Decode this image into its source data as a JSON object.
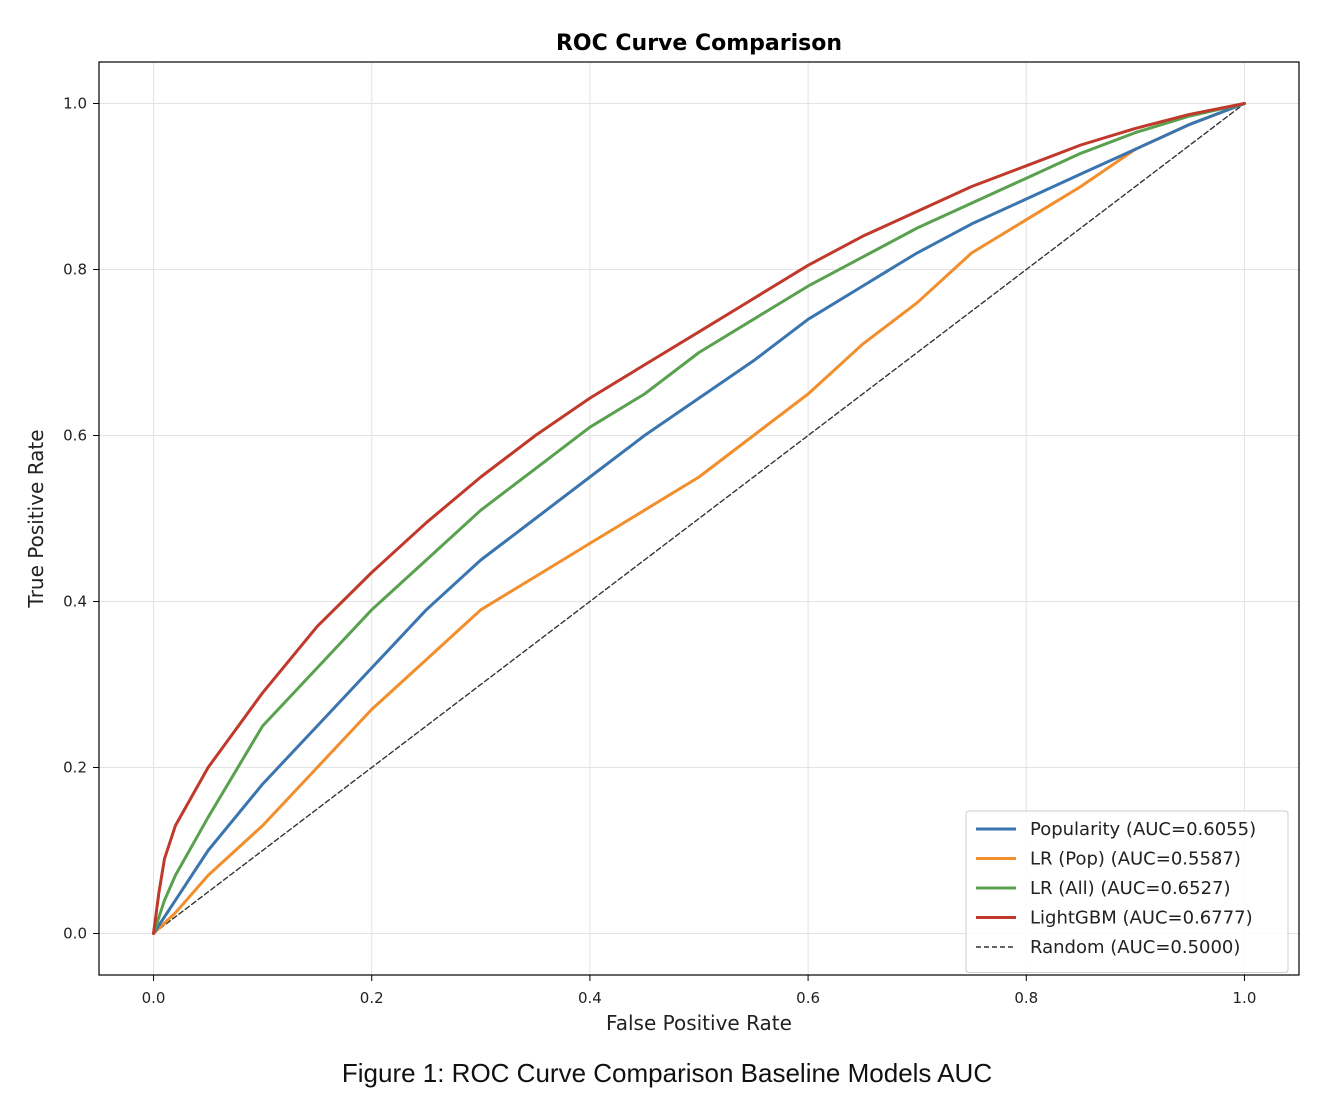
{
  "caption": "Figure 1: ROC Curve Comparison Baseline Models AUC",
  "chart_data": {
    "type": "line",
    "title": "ROC Curve Comparison",
    "xlabel": "False Positive Rate",
    "ylabel": "True Positive Rate",
    "xlim": [
      -0.05,
      1.05
    ],
    "ylim": [
      -0.05,
      1.05
    ],
    "xticks": [
      0.0,
      0.2,
      0.4,
      0.6,
      0.8,
      1.0
    ],
    "yticks": [
      0.0,
      0.2,
      0.4,
      0.6,
      0.8,
      1.0
    ],
    "xtick_labels": [
      "0.0",
      "0.2",
      "0.4",
      "0.6",
      "0.8",
      "1.0"
    ],
    "ytick_labels": [
      "0.0",
      "0.2",
      "0.4",
      "0.6",
      "0.8",
      "1.0"
    ],
    "grid": true,
    "legend_position": "bottom-right",
    "series": [
      {
        "name": "Popularity (AUC=0.6055)",
        "color": "#3a75b0",
        "style": "solid",
        "x": [
          0.0,
          0.02,
          0.05,
          0.1,
          0.15,
          0.2,
          0.25,
          0.3,
          0.35,
          0.4,
          0.45,
          0.5,
          0.55,
          0.6,
          0.65,
          0.7,
          0.75,
          0.8,
          0.85,
          0.9,
          0.95,
          1.0
        ],
        "y": [
          0.0,
          0.04,
          0.1,
          0.18,
          0.25,
          0.32,
          0.39,
          0.45,
          0.5,
          0.55,
          0.6,
          0.645,
          0.69,
          0.74,
          0.78,
          0.82,
          0.855,
          0.885,
          0.915,
          0.945,
          0.975,
          1.0
        ]
      },
      {
        "name": "LR (Pop) (AUC=0.5587)",
        "color": "#f28e2b",
        "style": "solid",
        "x": [
          0.0,
          0.02,
          0.05,
          0.1,
          0.15,
          0.2,
          0.25,
          0.3,
          0.35,
          0.4,
          0.45,
          0.5,
          0.55,
          0.6,
          0.65,
          0.7,
          0.75,
          0.8,
          0.85,
          0.9,
          0.95,
          1.0
        ],
        "y": [
          0.0,
          0.025,
          0.07,
          0.13,
          0.2,
          0.27,
          0.33,
          0.39,
          0.43,
          0.47,
          0.51,
          0.55,
          0.6,
          0.65,
          0.71,
          0.76,
          0.82,
          0.86,
          0.9,
          0.945,
          0.975,
          1.0
        ]
      },
      {
        "name": "LR (All) (AUC=0.6527)",
        "color": "#59a14f",
        "style": "solid",
        "x": [
          0.0,
          0.01,
          0.02,
          0.05,
          0.1,
          0.15,
          0.2,
          0.25,
          0.3,
          0.35,
          0.4,
          0.45,
          0.5,
          0.55,
          0.6,
          0.65,
          0.7,
          0.75,
          0.8,
          0.85,
          0.9,
          0.95,
          1.0
        ],
        "y": [
          0.0,
          0.04,
          0.07,
          0.14,
          0.25,
          0.32,
          0.39,
          0.45,
          0.51,
          0.56,
          0.61,
          0.65,
          0.7,
          0.74,
          0.78,
          0.815,
          0.85,
          0.88,
          0.91,
          0.94,
          0.965,
          0.985,
          1.0
        ]
      },
      {
        "name": "LightGBM (AUC=0.6777)",
        "color": "#c0392b",
        "style": "solid",
        "x": [
          0.0,
          0.005,
          0.01,
          0.02,
          0.05,
          0.1,
          0.15,
          0.2,
          0.25,
          0.3,
          0.35,
          0.4,
          0.45,
          0.5,
          0.55,
          0.6,
          0.65,
          0.7,
          0.75,
          0.8,
          0.85,
          0.9,
          0.95,
          1.0
        ],
        "y": [
          0.0,
          0.05,
          0.09,
          0.13,
          0.2,
          0.29,
          0.37,
          0.435,
          0.495,
          0.55,
          0.6,
          0.645,
          0.685,
          0.725,
          0.765,
          0.805,
          0.84,
          0.87,
          0.9,
          0.925,
          0.95,
          0.97,
          0.987,
          1.0
        ]
      },
      {
        "name": "Random (AUC=0.5000)",
        "color": "#333333",
        "style": "dashed",
        "x": [
          0.0,
          1.0
        ],
        "y": [
          0.0,
          1.0
        ]
      }
    ]
  }
}
